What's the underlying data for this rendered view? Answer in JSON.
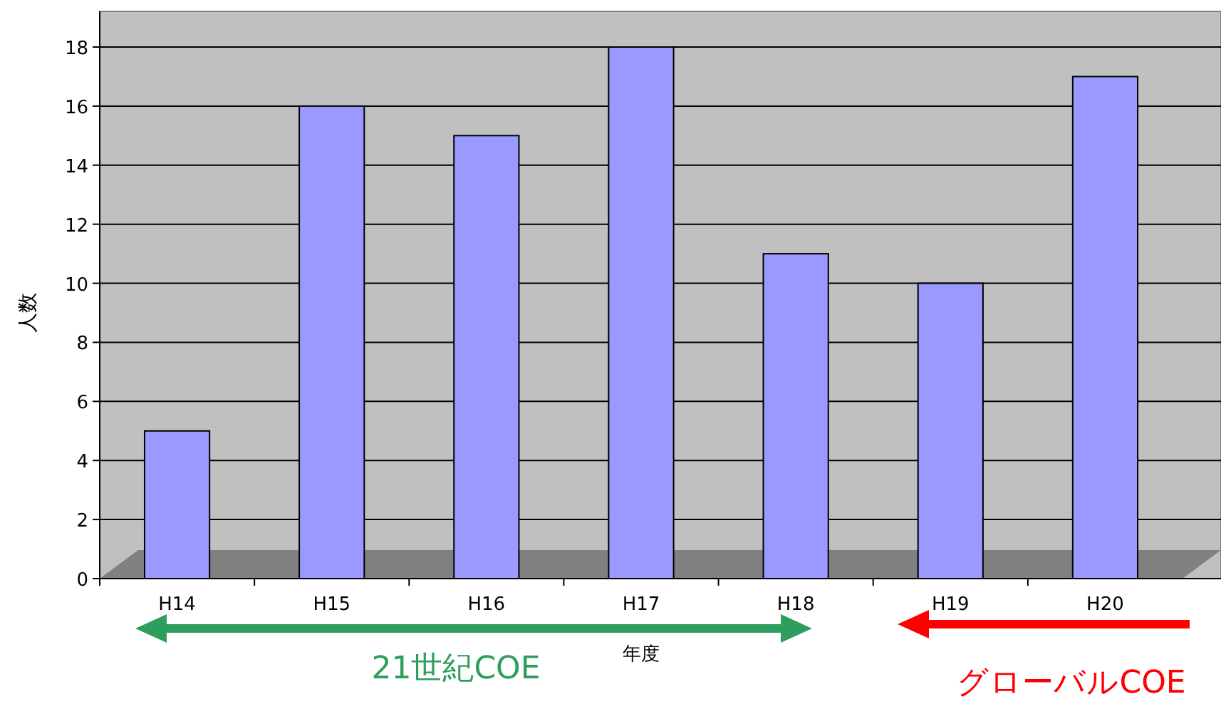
{
  "chart_data": {
    "type": "bar",
    "ylabel": "人数",
    "xlabel": "年度",
    "categories": [
      "H14",
      "H15",
      "H16",
      "H17",
      "H18",
      "H19",
      "H20"
    ],
    "values": [
      5,
      16,
      15,
      18,
      11,
      10,
      17
    ],
    "color": "#9999ff",
    "ylim": [
      0,
      18
    ],
    "yticks": [
      0,
      2,
      4,
      6,
      8,
      10,
      12,
      14,
      16,
      18
    ],
    "grid": "y",
    "annotations": [
      "21世紀COE",
      "グローバルCOE"
    ]
  }
}
